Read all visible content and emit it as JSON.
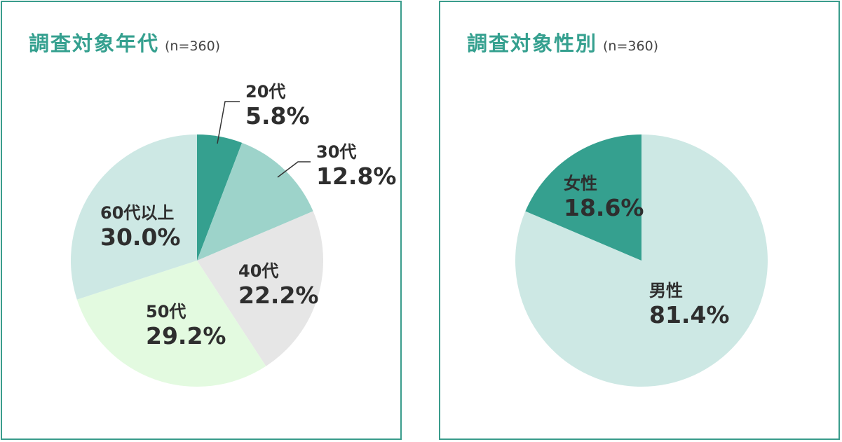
{
  "chart_data": [
    {
      "type": "pie",
      "title": "調査対象年代",
      "subtitle": "(n=360)",
      "categories": [
        "20代",
        "30代",
        "40代",
        "50代",
        "60代以上"
      ],
      "values": [
        5.8,
        12.8,
        22.2,
        29.2,
        30.0
      ],
      "value_labels": [
        "5.8%",
        "12.8%",
        "22.2%",
        "29.2%",
        "30.0%"
      ],
      "colors": [
        "#35a08f",
        "#9dd3ca",
        "#e6e6e6",
        "#e3fae0",
        "#cde8e4"
      ],
      "label_colors": [
        "#2e2e2e",
        "#2e2e2e",
        "#2e2e2e",
        "#2e2e2e",
        "#2e2e2e"
      ],
      "start": "top, clockwise"
    },
    {
      "type": "pie",
      "title": "調査対象性別",
      "subtitle": "(n=360)",
      "categories": [
        "男性",
        "女性"
      ],
      "values": [
        81.4,
        18.6
      ],
      "value_labels": [
        "81.4%",
        "18.6%"
      ],
      "colors": [
        "#cde8e4",
        "#35a08f"
      ],
      "label_colors": [
        "#2e2e2e",
        "#ffffff"
      ],
      "start": "top, clockwise"
    }
  ]
}
